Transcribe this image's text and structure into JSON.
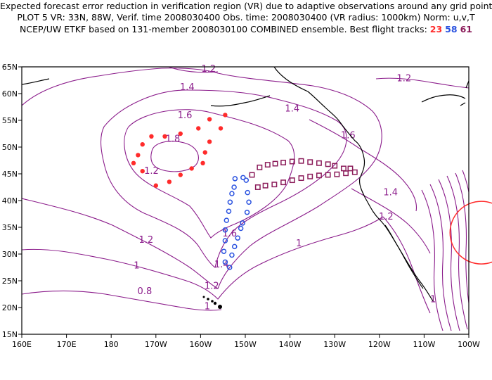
{
  "title_lines": [
    "Expected forecast error reduction in verification region (VR) due to adaptive observations around any grid point.",
    "PLOT 5 VR: 33N, 88W, Verif. time 2008030400 Obs. time: 2008030400 (VR radius: 1000km) Norm: u,v,T",
    "NCEP/UW ETKF based on 131-member 2008030100 COMBINED ensemble.  Best flight tracks:"
  ],
  "flight_track_ids": [
    {
      "id": "23",
      "color": "#ff2b2b"
    },
    {
      "id": "58",
      "color": "#2a52e0"
    },
    {
      "id": "61",
      "color": "#8b1c5a"
    }
  ],
  "map": {
    "lon_ticks": [
      "160E",
      "170E",
      "180",
      "170W",
      "160W",
      "150W",
      "140W",
      "130W",
      "120W",
      "110W",
      "100W"
    ],
    "lat_ticks": [
      "15N",
      "20N",
      "25N",
      "30N",
      "35N",
      "40N",
      "45N",
      "50N",
      "55N",
      "60N",
      "65N"
    ],
    "contour_color": "#8b1c8b",
    "contour_labels": [
      {
        "text": "1.2",
        "lon": -158.2,
        "lat": 64.6
      },
      {
        "text": "1.4",
        "lon": -163.0,
        "lat": 61.2
      },
      {
        "text": "1.6",
        "lon": -163.5,
        "lat": 55.9
      },
      {
        "text": "1.8",
        "lon": -166.2,
        "lat": 51.5
      },
      {
        "text": "1.2",
        "lon": -171.0,
        "lat": 45.5
      },
      {
        "text": "1.2",
        "lon": -172.2,
        "lat": 32.6
      },
      {
        "text": "1",
        "lon": -174.3,
        "lat": 27.8
      },
      {
        "text": "0.8",
        "lon": -172.5,
        "lat": 23.0
      },
      {
        "text": "1.6",
        "lon": -153.5,
        "lat": 33.8
      },
      {
        "text": "1.4",
        "lon": -155.3,
        "lat": 28.0
      },
      {
        "text": "1.2",
        "lon": -157.5,
        "lat": 24.0
      },
      {
        "text": "1",
        "lon": -158.5,
        "lat": 20.2
      },
      {
        "text": "1",
        "lon": -138.0,
        "lat": 32.0
      },
      {
        "text": "1.4",
        "lon": -139.5,
        "lat": 57.2
      },
      {
        "text": "1.6",
        "lon": -127.0,
        "lat": 52.2
      },
      {
        "text": "1.2",
        "lon": -114.5,
        "lat": 62.8
      },
      {
        "text": "1.4",
        "lon": -117.5,
        "lat": 41.5
      },
      {
        "text": "1.2",
        "lon": -118.5,
        "lat": 37.0
      },
      {
        "text": "1",
        "lon": -108.0,
        "lat": 21.5
      }
    ],
    "track_23": [
      [
        -154.5,
        56
      ],
      [
        -155.5,
        53.5
      ],
      [
        -158,
        51
      ],
      [
        -159,
        49
      ],
      [
        -159.5,
        47
      ],
      [
        -162,
        46
      ],
      [
        -164.5,
        44.8
      ],
      [
        -167,
        43.5
      ],
      [
        -170,
        42.8
      ],
      [
        -173,
        45.5
      ],
      [
        -175,
        47
      ],
      [
        -174,
        48.5
      ],
      [
        -173,
        50.5
      ],
      [
        -171,
        52
      ],
      [
        -168,
        52
      ],
      [
        -164.5,
        52.5
      ],
      [
        -160.5,
        53.5
      ],
      [
        -158,
        55.2
      ]
    ],
    "track_58": [
      [
        -153.5,
        27.5
      ],
      [
        -154.5,
        28.5
      ],
      [
        -154.8,
        30.5
      ],
      [
        -154.5,
        32.5
      ],
      [
        -154.5,
        34.5
      ],
      [
        -154.2,
        36.3
      ],
      [
        -153.7,
        38
      ],
      [
        -153.4,
        39.7
      ],
      [
        -153,
        41.3
      ],
      [
        -152.5,
        42.5
      ],
      [
        -152.3,
        44.1
      ],
      [
        -150.5,
        44.3
      ],
      [
        -149.8,
        43.8
      ],
      [
        -149.5,
        41.5
      ],
      [
        -149.2,
        39.7
      ],
      [
        -149.6,
        37.8
      ],
      [
        -150.6,
        35.8
      ],
      [
        -151,
        34.8
      ],
      [
        -151.7,
        33
      ],
      [
        -152.4,
        31.4
      ],
      [
        -153,
        29.8
      ]
    ],
    "track_61": [
      [
        -148.5,
        44.8
      ],
      [
        -146.8,
        46.2
      ],
      [
        -145,
        46.7
      ],
      [
        -143.3,
        46.9
      ],
      [
        -141.5,
        47.1
      ],
      [
        -139.5,
        47.3
      ],
      [
        -137.5,
        47.4
      ],
      [
        -135.5,
        47.2
      ],
      [
        -133.5,
        47
      ],
      [
        -131.5,
        46.8
      ],
      [
        -130,
        46.5
      ],
      [
        -128,
        46
      ],
      [
        -126.5,
        46
      ],
      [
        -125.5,
        45.3
      ],
      [
        -127.5,
        45.1
      ],
      [
        -129.5,
        44.9
      ],
      [
        -131.5,
        44.8
      ],
      [
        -133.5,
        44.7
      ],
      [
        -135.5,
        44.5
      ],
      [
        -137.5,
        44.2
      ],
      [
        -139.5,
        43.8
      ],
      [
        -141.5,
        43.4
      ],
      [
        -143.5,
        43
      ],
      [
        -145.5,
        42.8
      ],
      [
        -147.2,
        42.5
      ]
    ],
    "red_circle_edge": {
      "lon": -97.2,
      "lat": 34,
      "radius_deg": 7
    }
  }
}
